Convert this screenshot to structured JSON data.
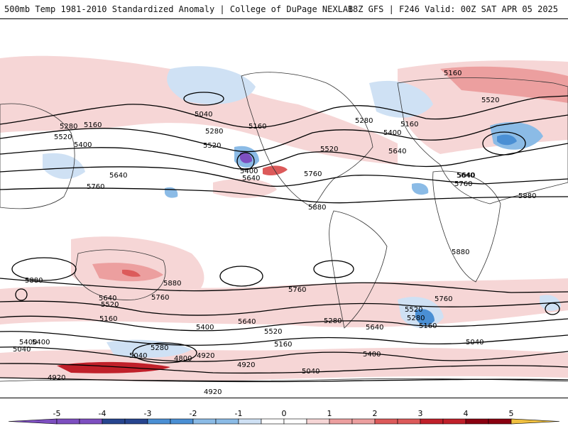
{
  "header": {
    "left": "500mb Temp 1981-2010 Standardized Anomaly | College of DuPage NEXLAB",
    "right": "18Z GFS | F246 Valid: 00Z SAT APR 05 2025"
  },
  "colors": {
    "neg5": "#7d4fc0",
    "neg4": "#27458f",
    "neg3": "#4a8fd4",
    "neg2": "#8bbbe6",
    "neg1": "#cfe1f4",
    "zero": "#ffffff",
    "pos1": "#f6d6d6",
    "pos2": "#ec9f9f",
    "pos3": "#dc5a5a",
    "pos4": "#c0202a",
    "pos5": "#8a0010",
    "over": "#f0c040"
  },
  "colorbar": {
    "ticks": [
      "-5",
      "-4",
      "-3",
      "-2",
      "-1",
      "0",
      "1",
      "2",
      "3",
      "4",
      "5"
    ]
  },
  "contour_labels": [
    "5160",
    "5520",
    "5040",
    "5280",
    "5160",
    "5280",
    "5160",
    "5400",
    "5640",
    "5520",
    "5280",
    "5160",
    "5400",
    "5520",
    "5640",
    "5400",
    "5640",
    "5760",
    "5520",
    "5640",
    "5880",
    "5760",
    "5880",
    "5640",
    "5760",
    "5880",
    "5880",
    "5640",
    "5520",
    "5160",
    "5400",
    "5040",
    "5880",
    "5760",
    "5640",
    "5400",
    "5520",
    "5160",
    "5280",
    "5040",
    "4800",
    "4920",
    "4920",
    "4920",
    "5040",
    "5400",
    "5640",
    "5280",
    "5520",
    "5160",
    "5040",
    "5760",
    "5760",
    "5280",
    "4920",
    "5400"
  ]
}
